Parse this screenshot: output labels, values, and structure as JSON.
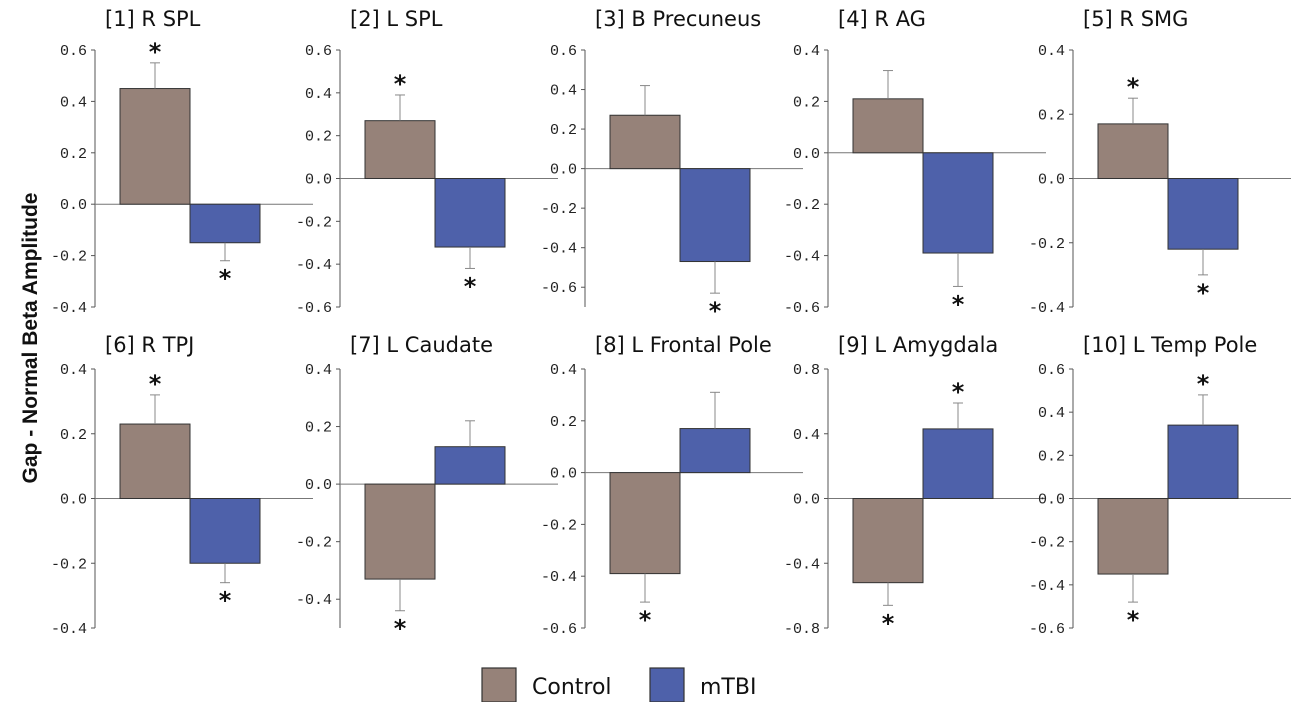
{
  "ylabel": "Gap - Normal Beta Amplitude",
  "legend": [
    {
      "label": "Control",
      "color": "#968279"
    },
    {
      "label": "mTBI",
      "color": "#4e61aa"
    }
  ],
  "significance_marker": "*",
  "chart_data": [
    {
      "type": "bar",
      "title": "[1] R SPL",
      "categories": [
        "Control",
        "mTBI"
      ],
      "ylim": [
        -0.4,
        0.6
      ],
      "yticks": [
        "-0.4",
        "-0.2",
        "0.0",
        "0.2",
        "0.4",
        "0.6"
      ],
      "series": [
        {
          "name": "Control",
          "value": 0.45,
          "error": 0.1,
          "significant": true
        },
        {
          "name": "mTBI",
          "value": -0.15,
          "error": 0.07,
          "significant": true
        }
      ]
    },
    {
      "type": "bar",
      "title": "[2] L SPL",
      "categories": [
        "Control",
        "mTBI"
      ],
      "ylim": [
        -0.6,
        0.6
      ],
      "yticks": [
        "-0.6",
        "-0.4",
        "-0.2",
        "0.0",
        "0.2",
        "0.4",
        "0.6"
      ],
      "series": [
        {
          "name": "Control",
          "value": 0.27,
          "error": 0.12,
          "significant": true
        },
        {
          "name": "mTBI",
          "value": -0.32,
          "error": 0.1,
          "significant": true
        }
      ]
    },
    {
      "type": "bar",
      "title": "[3] B Precuneus",
      "categories": [
        "Control",
        "mTBI"
      ],
      "ylim": [
        -0.7,
        0.6
      ],
      "yticks": [
        "-0.6",
        "-0.4",
        "-0.2",
        "0.0",
        "0.2",
        "0.4",
        "0.6"
      ],
      "series": [
        {
          "name": "Control",
          "value": 0.27,
          "error": 0.15,
          "significant": false
        },
        {
          "name": "mTBI",
          "value": -0.47,
          "error": 0.16,
          "significant": true
        }
      ]
    },
    {
      "type": "bar",
      "title": "[4] R AG",
      "categories": [
        "Control",
        "mTBI"
      ],
      "ylim": [
        -0.6,
        0.4
      ],
      "yticks": [
        "-0.6",
        "-0.4",
        "-0.2",
        "0.0",
        "0.2",
        "0.4"
      ],
      "series": [
        {
          "name": "Control",
          "value": 0.21,
          "error": 0.11,
          "significant": false
        },
        {
          "name": "mTBI",
          "value": -0.39,
          "error": 0.13,
          "significant": true
        }
      ]
    },
    {
      "type": "bar",
      "title": "[5] R SMG",
      "categories": [
        "Control",
        "mTBI"
      ],
      "ylim": [
        -0.4,
        0.4
      ],
      "yticks": [
        "-0.4",
        "-0.2",
        "0.0",
        "0.2",
        "0.4"
      ],
      "series": [
        {
          "name": "Control",
          "value": 0.17,
          "error": 0.08,
          "significant": true
        },
        {
          "name": "mTBI",
          "value": -0.22,
          "error": 0.08,
          "significant": true
        }
      ]
    },
    {
      "type": "bar",
      "title": "[6] R TPJ",
      "categories": [
        "Control",
        "mTBI"
      ],
      "ylim": [
        -0.4,
        0.4
      ],
      "yticks": [
        "-0.4",
        "-0.2",
        "0.0",
        "0.2",
        "0.4"
      ],
      "series": [
        {
          "name": "Control",
          "value": 0.23,
          "error": 0.09,
          "significant": true
        },
        {
          "name": "mTBI",
          "value": -0.2,
          "error": 0.06,
          "significant": true
        }
      ]
    },
    {
      "type": "bar",
      "title": "[7] L Caudate",
      "categories": [
        "Control",
        "mTBI"
      ],
      "ylim": [
        -0.5,
        0.4
      ],
      "yticks": [
        "-0.4",
        "-0.2",
        "0.0",
        "0.2",
        "0.4"
      ],
      "series": [
        {
          "name": "Control",
          "value": -0.33,
          "error": 0.11,
          "significant": true
        },
        {
          "name": "mTBI",
          "value": 0.13,
          "error": 0.09,
          "significant": false
        }
      ]
    },
    {
      "type": "bar",
      "title": "[8] L Frontal Pole",
      "categories": [
        "Control",
        "mTBI"
      ],
      "ylim": [
        -0.6,
        0.4
      ],
      "yticks": [
        "-0.6",
        "-0.4",
        "-0.2",
        "0.0",
        "0.2",
        "0.4"
      ],
      "series": [
        {
          "name": "Control",
          "value": -0.39,
          "error": 0.11,
          "significant": true
        },
        {
          "name": "mTBI",
          "value": 0.17,
          "error": 0.14,
          "significant": false
        }
      ]
    },
    {
      "type": "bar",
      "title": "[9] L Amygdala",
      "categories": [
        "Control",
        "mTBI"
      ],
      "ylim": [
        -0.8,
        0.8
      ],
      "yticks": [
        "-0.8",
        "-0.4",
        "0.0",
        "0.4",
        "0.8"
      ],
      "series": [
        {
          "name": "Control",
          "value": -0.52,
          "error": 0.14,
          "significant": true
        },
        {
          "name": "mTBI",
          "value": 0.43,
          "error": 0.16,
          "significant": true
        }
      ]
    },
    {
      "type": "bar",
      "title": "[10] L Temp Pole",
      "categories": [
        "Control",
        "mTBI"
      ],
      "ylim": [
        -0.6,
        0.6
      ],
      "yticks": [
        "-0.6",
        "-0.4",
        "-0.2",
        "0.0",
        "0.2",
        "0.4",
        "0.6"
      ],
      "series": [
        {
          "name": "Control",
          "value": -0.35,
          "error": 0.13,
          "significant": true
        },
        {
          "name": "mTBI",
          "value": 0.34,
          "error": 0.14,
          "significant": true
        }
      ]
    }
  ]
}
